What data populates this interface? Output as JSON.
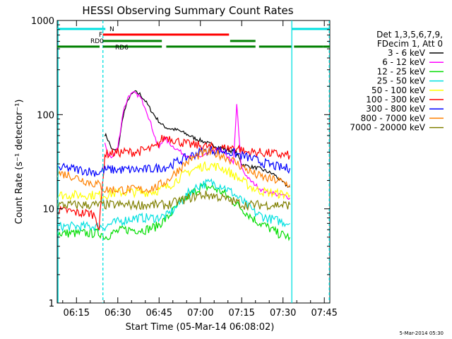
{
  "chart_data": {
    "type": "line",
    "title": "HESSI Observing Summary Count Rates",
    "xlabel": "Start Time (05-Mar-14 06:08:02)",
    "ylabel": "Count Rate (s⁻¹ detector⁻¹)",
    "x_unit": "minutes after 06:00 UT",
    "xlim": [
      8.0,
      107.0
    ],
    "ylim": [
      1,
      1000
    ],
    "yscale": "log",
    "x_ticks": [
      {
        "value": 15,
        "label": "06:15"
      },
      {
        "value": 30,
        "label": "06:30"
      },
      {
        "value": 45,
        "label": "06:45"
      },
      {
        "value": 60,
        "label": "07:00"
      },
      {
        "value": 75,
        "label": "07:15"
      },
      {
        "value": 90,
        "label": "07:30"
      },
      {
        "value": 105,
        "label": "07:45"
      }
    ],
    "y_ticks": [
      {
        "value": 1,
        "label": "1"
      },
      {
        "value": 10,
        "label": "10"
      },
      {
        "value": 100,
        "label": "100"
      },
      {
        "value": 1000,
        "label": "1000"
      }
    ],
    "legend_header": [
      "Det 1,3,5,6,7,9,",
      "FDecim 1, Att 0"
    ],
    "legend_position": "right",
    "footer_date": "5-Mar-2014 05:30",
    "attenuator_bars": [
      {
        "label": "N",
        "color": "#00e0e0",
        "segments": [
          [
            8.0,
            24.6
          ],
          [
            24.6,
            25.5
          ],
          [
            93.2,
            108.5
          ]
        ]
      },
      {
        "label": "F",
        "color": "#ff0000",
        "segments": [
          [
            24.6,
            70.4
          ]
        ]
      },
      {
        "label": "RD0",
        "color": "#008000",
        "segments": [
          [
            24.6,
            46.0
          ],
          [
            70.8,
            80.0
          ]
        ]
      },
      {
        "label": "RD6",
        "color": "#008000",
        "segments": [
          [
            8.0,
            23.4
          ],
          [
            24.6,
            46.0
          ],
          [
            47.6,
            80.0
          ],
          [
            81.3,
            93.0
          ],
          [
            94.0,
            104.5
          ],
          [
            104.5,
            108.5
          ]
        ]
      }
    ],
    "vertical_markers": [
      {
        "x": 8.3,
        "color": "#00e0e0",
        "style": "solid"
      },
      {
        "x": 24.6,
        "color": "#00e0e0",
        "style": "dashed"
      },
      {
        "x": 93.2,
        "color": "#00e0e0",
        "style": "solid"
      },
      {
        "x": 106.8,
        "color": "#00e0e0",
        "style": "dashed"
      }
    ],
    "series": [
      {
        "name": "3 - 6 keV",
        "color": "#000000",
        "x": [
          25.3,
          26.0,
          28.0,
          30.0,
          32.0,
          34.0,
          36.0,
          38.0,
          40.0,
          42.0,
          44.0,
          46.0,
          48.0,
          50.0,
          52.0,
          55.0,
          58.0,
          61.0,
          64.0,
          67.0,
          70.0,
          73.0,
          74.0,
          75.0,
          76.0,
          78.0,
          81.0,
          84.0,
          87.0,
          89.0,
          91.0,
          92.5
        ],
        "y": [
          62,
          58,
          42,
          42,
          100,
          150,
          175,
          165,
          140,
          112,
          92,
          78,
          72,
          70,
          68,
          62,
          56,
          52,
          48,
          45,
          42,
          40,
          35,
          30,
          29,
          28,
          27,
          25,
          23,
          20,
          18,
          17
        ]
      },
      {
        "name": "6 - 12 keV",
        "color": "#ff00ff",
        "x": [
          25.3,
          26.0,
          28.0,
          30.0,
          32.0,
          34.0,
          36.0,
          38.0,
          40.0,
          42.0,
          44.0,
          45.0,
          46.0,
          47.0,
          48.0,
          50.0,
          52.0,
          54.0,
          56.0,
          58.0,
          60.0,
          62.0,
          64.0,
          66.0,
          68.0,
          70.0,
          72.0,
          73.2,
          74.0,
          74.8,
          76.0,
          78.0,
          80.0,
          82.0,
          84.0,
          86.0,
          88.0,
          90.0,
          92.5
        ],
        "y": [
          50,
          40,
          35,
          45,
          110,
          160,
          170,
          155,
          120,
          80,
          52,
          45,
          50,
          58,
          52,
          46,
          42,
          38,
          36,
          35,
          36,
          38,
          40,
          42,
          40,
          36,
          30,
          130,
          60,
          28,
          24,
          20,
          18,
          16,
          15,
          15,
          14,
          14,
          13
        ]
      },
      {
        "name": "12 - 25 keV",
        "color": "#00dd00",
        "x": [
          8.0,
          12.0,
          16.0,
          20.0,
          23.0,
          24.0,
          25.3,
          28.0,
          32.0,
          36.0,
          40.0,
          44.0,
          48.0,
          52.0,
          56.0,
          60.0,
          64.0,
          68.0,
          72.0,
          76.0,
          80.0,
          84.0,
          88.0,
          92.5
        ],
        "y": [
          5.5,
          5.5,
          5.5,
          5.5,
          5.5,
          5.5,
          5.0,
          5.5,
          6.0,
          6.0,
          6.0,
          6.5,
          8.0,
          11.0,
          14.0,
          17.0,
          17.0,
          15.0,
          12.0,
          9.5,
          7.5,
          6.5,
          5.5,
          5.0
        ]
      },
      {
        "name": "25 - 50 keV",
        "color": "#00e0e0",
        "x": [
          8.0,
          12.0,
          16.0,
          20.0,
          23.0,
          25.3,
          28.0,
          32.0,
          36.0,
          40.0,
          44.0,
          48.0,
          52.0,
          56.0,
          60.0,
          64.0,
          68.0,
          72.0,
          76.0,
          80.0,
          84.0,
          88.0,
          92.5
        ],
        "y": [
          6.5,
          6.5,
          6.5,
          6.5,
          6.5,
          6.5,
          7.0,
          7.5,
          8.0,
          8.0,
          8.0,
          8.5,
          11.0,
          15.0,
          18.0,
          19.0,
          17.5,
          14.5,
          11.5,
          9.0,
          8.0,
          7.5,
          7.0
        ]
      },
      {
        "name": "50 - 100 keV",
        "color": "#ffff00",
        "x": [
          8.0,
          12.0,
          16.0,
          20.0,
          23.0,
          25.3,
          28.0,
          32.0,
          36.0,
          40.0,
          44.0,
          48.0,
          52.0,
          56.0,
          60.0,
          64.0,
          68.0,
          72.0,
          76.0,
          80.0,
          84.0,
          88.0,
          92.5
        ],
        "y": [
          14,
          14,
          14,
          14,
          14,
          14,
          14.5,
          15,
          15,
          15,
          15.5,
          17,
          21,
          25,
          28,
          29,
          27,
          23,
          19,
          16,
          15,
          14.5,
          14
        ]
      },
      {
        "name": "100 - 300 keV",
        "color": "#ff0000",
        "x": [
          8.0,
          12.0,
          16.0,
          20.0,
          22.0,
          23.2,
          25.3,
          28.0,
          32.0,
          36.0,
          40.0,
          44.0,
          46.0,
          48.0,
          52.0,
          56.0,
          60.0,
          64.0,
          68.0,
          70.0,
          72.0,
          74.0,
          76.0,
          80.0,
          84.0,
          88.0,
          90.0,
          92.5
        ],
        "y": [
          9.5,
          9.5,
          9.0,
          9.0,
          8.5,
          6.0,
          38,
          39,
          40,
          40,
          42,
          45,
          55,
          58,
          52,
          48,
          47,
          45,
          44,
          44,
          45,
          44,
          40,
          40,
          39,
          38,
          37,
          37
        ]
      },
      {
        "name": "300 - 800 keV",
        "color": "#0000ff",
        "x": [
          8.0,
          12.0,
          16.0,
          20.0,
          23.2,
          25.3,
          28.0,
          32.0,
          36.0,
          40.0,
          44.0,
          48.0,
          52.0,
          56.0,
          60.0,
          64.0,
          68.0,
          72.0,
          76.0,
          80.0,
          84.0,
          88.0,
          90.0,
          92.5
        ],
        "y": [
          27,
          27,
          26,
          25,
          24,
          26,
          26,
          26,
          26,
          26,
          27,
          28,
          32,
          36,
          40,
          42,
          41,
          39,
          36,
          33,
          30,
          28,
          27,
          27
        ]
      },
      {
        "name": "800 - 7000 keV",
        "color": "#ff8000",
        "x": [
          8.0,
          12.0,
          16.0,
          20.0,
          23.2,
          25.3,
          28.0,
          32.0,
          36.0,
          40.0,
          44.0,
          48.0,
          52.0,
          56.0,
          60.0,
          64.0,
          68.0,
          72.0,
          76.0,
          80.0,
          84.0,
          88.0,
          90.0,
          92.5
        ],
        "y": [
          24,
          23,
          21,
          19,
          18,
          16,
          16,
          16,
          16,
          16,
          17,
          20,
          26,
          33,
          38,
          40,
          37,
          32,
          27,
          23,
          21,
          20,
          19,
          18
        ]
      },
      {
        "name": "7000 - 20000 keV",
        "color": "#808000",
        "x": [
          8.0,
          12.0,
          16.0,
          20.0,
          23.2,
          25.3,
          28.0,
          32.0,
          36.0,
          40.0,
          44.0,
          48.0,
          52.0,
          56.0,
          60.0,
          64.0,
          68.0,
          72.0,
          76.0,
          80.0,
          84.0,
          88.0,
          92.5
        ],
        "y": [
          11,
          11,
          11,
          11,
          11,
          11,
          11,
          11,
          11,
          11,
          11,
          11,
          12,
          13,
          14,
          14,
          13,
          12,
          11,
          11,
          11,
          11,
          11
        ]
      }
    ]
  }
}
